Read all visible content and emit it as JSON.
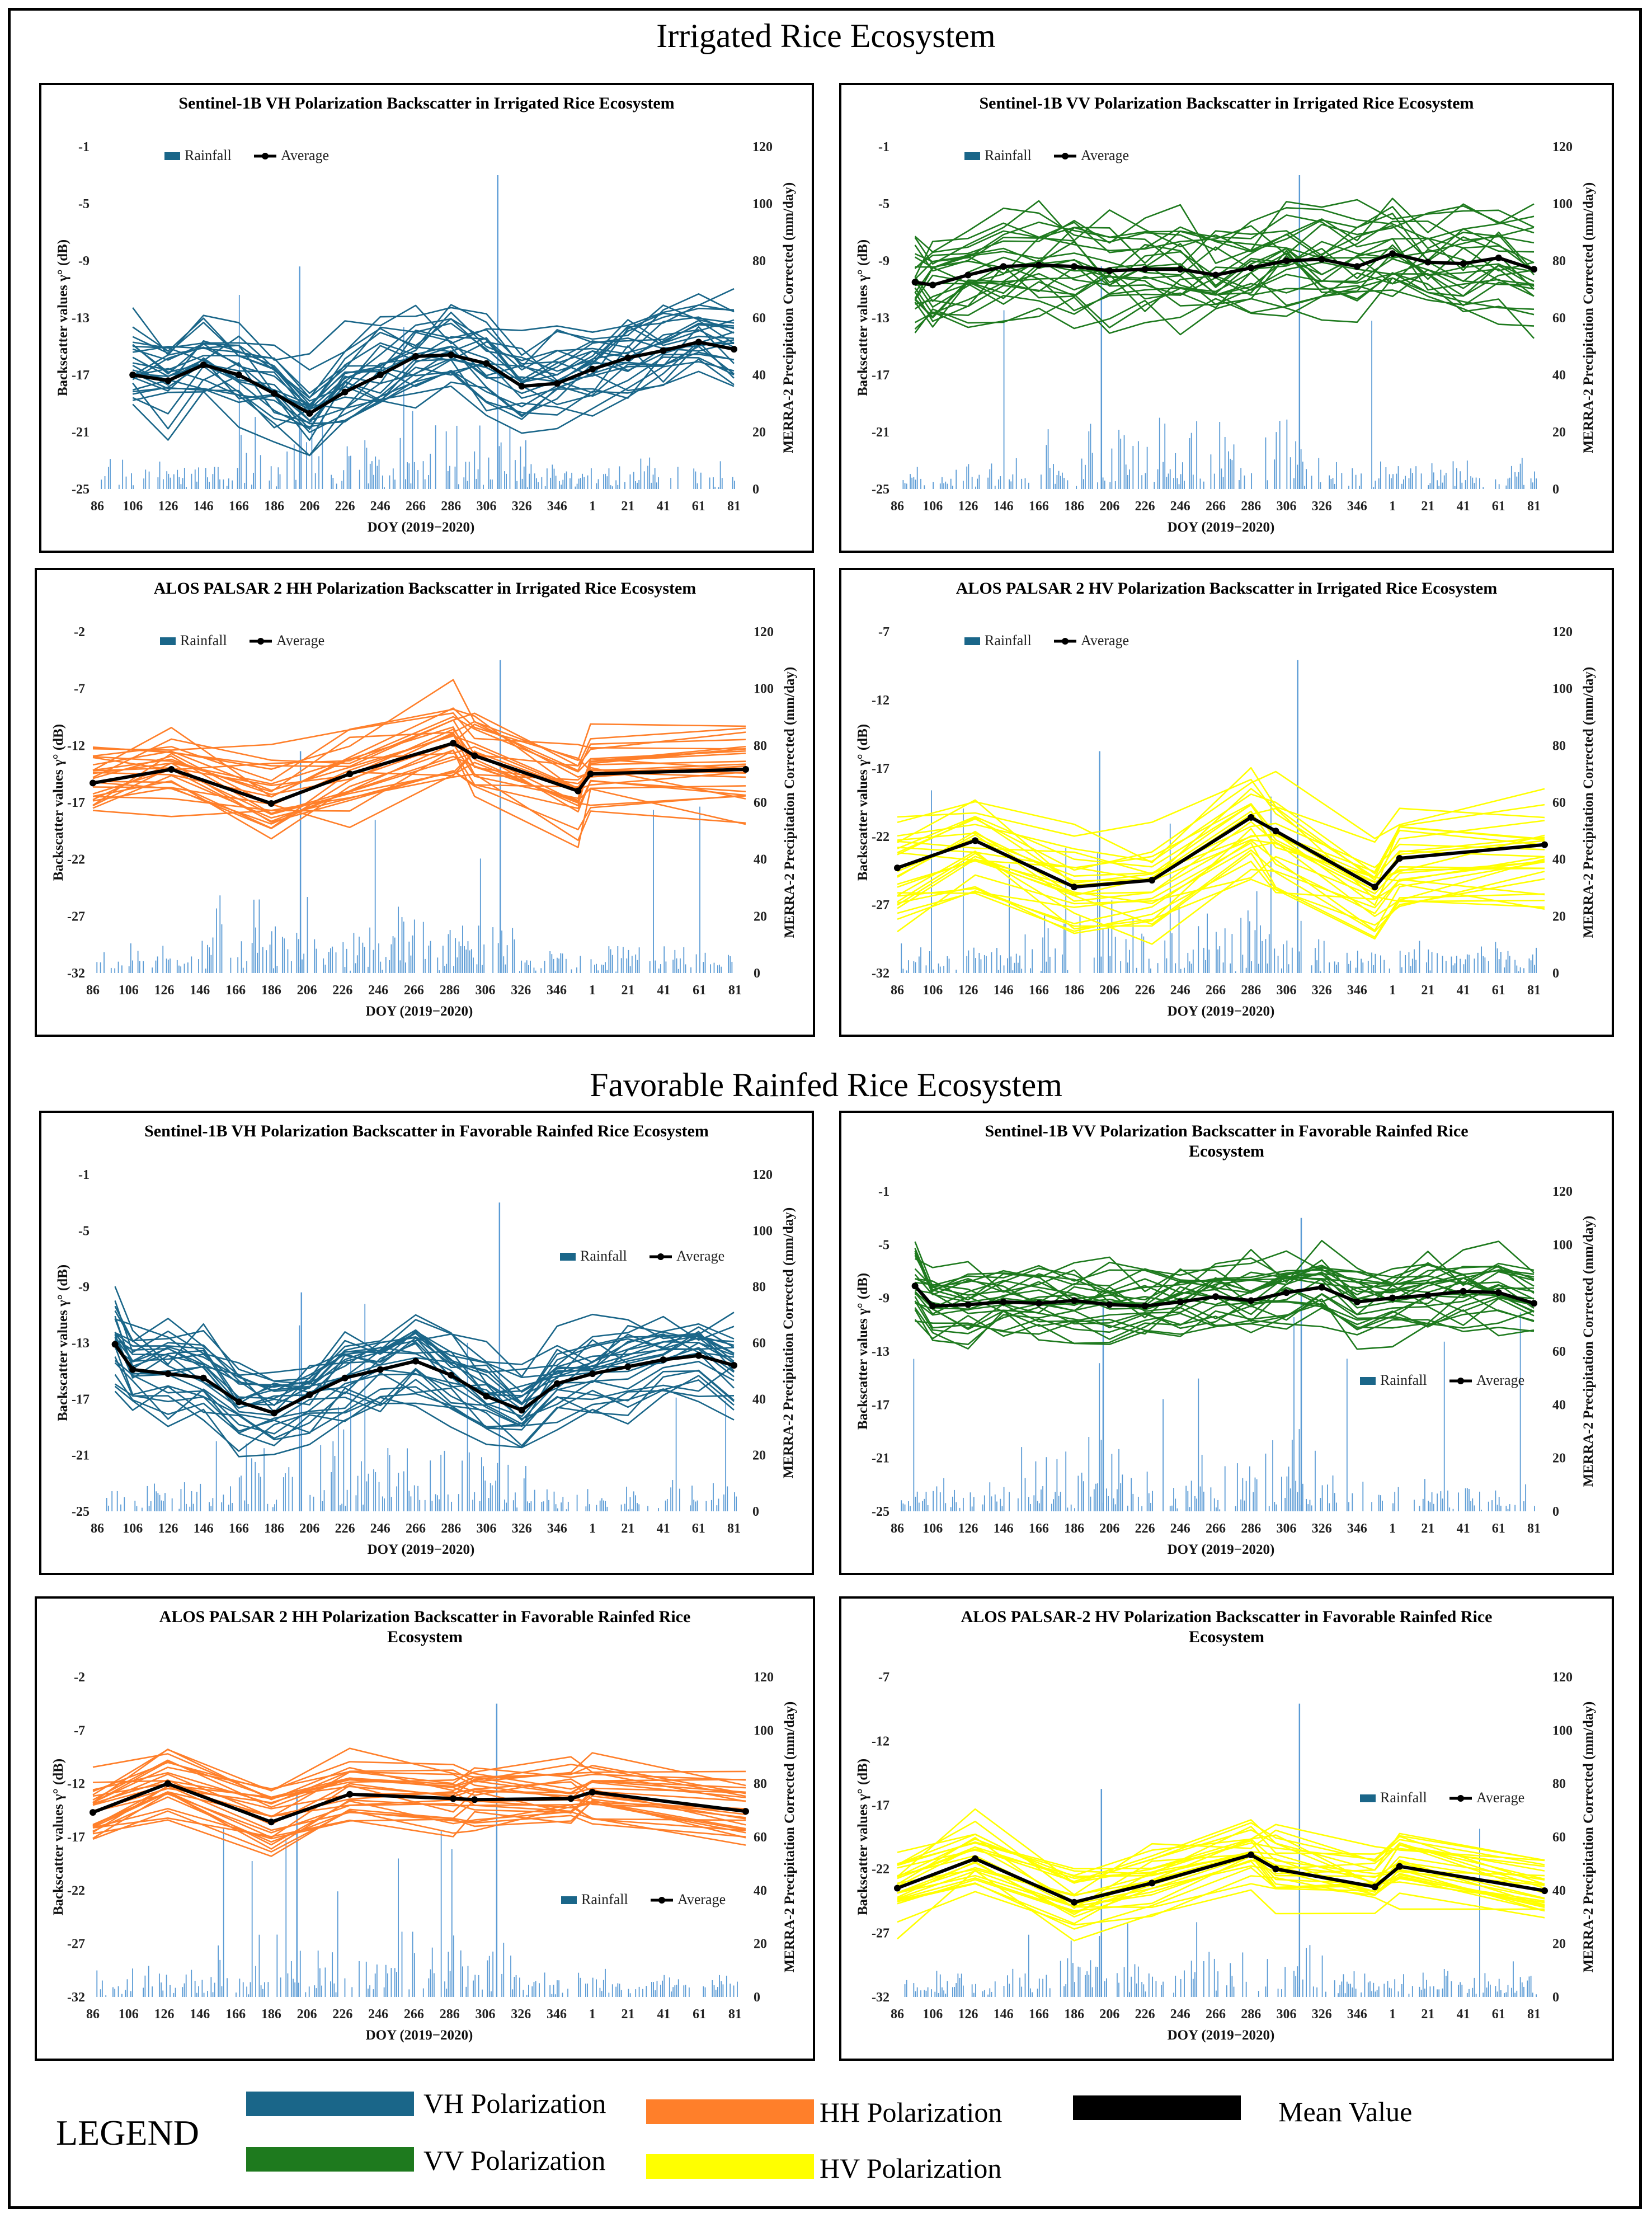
{
  "sections": {
    "irrigated": "Irrigated Rice Ecosystem",
    "rainfed": "Favorable Rainfed Rice Ecosystem"
  },
  "common": {
    "xlabel": "DOY (2019−2020)",
    "y2label": "MERRA-2 Precipitation Corrected (mm/day)",
    "ylabel": "Backscatter values γ° (dB)",
    "x_ticks": [
      "86",
      "106",
      "126",
      "146",
      "166",
      "186",
      "206",
      "226",
      "246",
      "266",
      "286",
      "306",
      "326",
      "346",
      "1",
      "21",
      "41",
      "61",
      "81"
    ],
    "y2_ticks": [
      "0",
      "20",
      "40",
      "60",
      "80",
      "100",
      "120"
    ],
    "legend_rainfall": "Rainfall",
    "legend_average": "Average",
    "rain_color": "#5b9bd5"
  },
  "chart_data": [
    {
      "id": "ir-s1-vh",
      "type": "line",
      "title": [
        "Sentinel-1B VH Polarization Backscatter in Irrigated Rice Ecosystem"
      ],
      "color": "#1a6689",
      "ylim": [
        -25,
        -1
      ],
      "y_ticks": [
        "-1",
        "-5",
        "-9",
        "-13",
        "-17",
        "-21",
        "-25"
      ],
      "average": {
        "x": [
          106,
          126,
          146,
          166,
          186,
          206,
          226,
          246,
          266,
          286,
          306,
          326,
          346,
          366,
          386,
          406,
          426,
          446
        ],
        "y": [
          -17,
          -17.4,
          -16.3,
          -17,
          -18.3,
          -19.7,
          -18.2,
          -17,
          -15.7,
          -15.6,
          -16.2,
          -17.8,
          -17.6,
          -16.6,
          -15.8,
          -15.3,
          -14.7,
          -15.2
        ]
      },
      "spread": 3.2,
      "legend_pos": "top-left"
    },
    {
      "id": "ir-s1-vv",
      "type": "line",
      "title": [
        "Sentinel-1B VV Polarization Backscatter in Irrigated Rice Ecosystem"
      ],
      "color": "#1e7a1e",
      "ylim": [
        -25,
        -1
      ],
      "y_ticks": [
        "-1",
        "-5",
        "-9",
        "-13",
        "-17",
        "-21",
        "-25"
      ],
      "average": {
        "x": [
          96,
          106,
          126,
          146,
          166,
          186,
          206,
          226,
          246,
          266,
          286,
          306,
          326,
          346,
          366,
          386,
          406,
          426,
          446
        ],
        "y": [
          -10.5,
          -10.7,
          -10,
          -9.4,
          -9.3,
          -9.4,
          -9.7,
          -9.6,
          -9.6,
          -10,
          -9.5,
          -9,
          -8.9,
          -9.4,
          -8.5,
          -9.1,
          -9.2,
          -8.8,
          -9.6
        ]
      },
      "spread": 3.4,
      "legend_pos": "top-left"
    },
    {
      "id": "ir-alos-hh",
      "type": "line",
      "title": [
        "ALOS PALSAR 2 HH Polarization Backscatter in Irrigated Rice Ecosystem"
      ],
      "color": "#ff7f2a",
      "ylim": [
        -32,
        -2
      ],
      "y_ticks": [
        "-2",
        "-7",
        "-12",
        "-17",
        "-22",
        "-27",
        "-32"
      ],
      "average": {
        "x": [
          86,
          130,
          186,
          230,
          288,
          300,
          358,
          365,
          452
        ],
        "y": [
          -15.3,
          -14.1,
          -17.1,
          -14.5,
          -11.8,
          -12.9,
          -16,
          -14.5,
          -14.1
        ]
      },
      "spread": 4,
      "legend_pos": "top-left"
    },
    {
      "id": "ir-alos-hv",
      "type": "line",
      "title": [
        "ALOS PALSAR 2 HV Polarization Backscatter in Irrigated Rice Ecosystem"
      ],
      "color": "#ffff00",
      "ylim": [
        -32,
        -7
      ],
      "y_ticks": [
        "-7",
        "-12",
        "-17",
        "-22",
        "-27",
        "-32"
      ],
      "average": {
        "x": [
          86,
          130,
          186,
          230,
          286,
          300,
          356,
          370,
          452
        ],
        "y": [
          -24.3,
          -22.3,
          -25.7,
          -25.2,
          -20.6,
          -21.6,
          -25.7,
          -23.6,
          -22.6
        ]
      },
      "spread": 3.5,
      "legend_pos": "top-left"
    },
    {
      "id": "rf-s1-vh",
      "type": "line",
      "title": [
        "Sentinel-1B VH Polarization Backscatter in Favorable Rainfed Rice Ecosystem"
      ],
      "color": "#1a6689",
      "ylim": [
        -25,
        -1
      ],
      "y_ticks": [
        "-1",
        "-5",
        "-9",
        "-13",
        "-17",
        "-21",
        "-25"
      ],
      "average": {
        "x": [
          96,
          106,
          126,
          146,
          166,
          186,
          206,
          226,
          246,
          266,
          286,
          306,
          326,
          346,
          366,
          386,
          406,
          426,
          446
        ],
        "y": [
          -13.1,
          -14.9,
          -15.2,
          -15.5,
          -17.2,
          -18,
          -16.7,
          -15.5,
          -14.9,
          -14.3,
          -15.3,
          -16.8,
          -17.8,
          -15.9,
          -15.2,
          -14.7,
          -14.2,
          -13.9,
          -14.6
        ]
      },
      "spread": 2.8,
      "legend_pos": "right"
    },
    {
      "id": "rf-s1-vv",
      "type": "line",
      "title": [
        "Sentinel-1B VV Polarization Backscatter in Favorable Rainfed Rice",
        "Ecosystem"
      ],
      "color": "#1e7a1e",
      "ylim": [
        -25,
        -1
      ],
      "y_ticks": [
        "-1",
        "-5",
        "-9",
        "-13",
        "-17",
        "-21",
        "-25"
      ],
      "average": {
        "x": [
          96,
          106,
          126,
          146,
          166,
          186,
          206,
          226,
          246,
          266,
          286,
          306,
          326,
          346,
          366,
          386,
          406,
          426,
          446
        ],
        "y": [
          -8.1,
          -9.6,
          -9.5,
          -9.3,
          -9.4,
          -9.2,
          -9.5,
          -9.6,
          -9.3,
          -8.9,
          -9.2,
          -8.6,
          -8.2,
          -9.3,
          -9,
          -8.8,
          -8.5,
          -8.6,
          -9.4
        ]
      },
      "spread": 2.6,
      "legend_pos": "bottom-right"
    },
    {
      "id": "rf-alos-hh",
      "type": "line",
      "title": [
        "ALOS PALSAR 2 HH Polarization Backscatter in Favorable Rainfed Rice",
        "Ecosystem"
      ],
      "color": "#ff7f2a",
      "ylim": [
        -32,
        -2
      ],
      "y_ticks": [
        "-2",
        "-7",
        "-12",
        "-17",
        "-22",
        "-27",
        "-32"
      ],
      "average": {
        "x": [
          86,
          128,
          186,
          230,
          288,
          300,
          354,
          366,
          452
        ],
        "y": [
          -14.7,
          -12,
          -15.6,
          -13,
          -13.4,
          -13.5,
          -13.4,
          -12.8,
          -14.6
        ]
      },
      "spread": 2.8,
      "legend_pos": "bottom-right"
    },
    {
      "id": "rf-alos-hv",
      "type": "line",
      "title": [
        "ALOS PALSAR-2 HV Polarization Backscatter in Favorable Rainfed Rice",
        "Ecosystem"
      ],
      "color": "#ffff00",
      "ylim": [
        -32,
        -7
      ],
      "y_ticks": [
        "-7",
        "-12",
        "-17",
        "-22",
        "-27",
        "-32"
      ],
      "average": {
        "x": [
          86,
          130,
          186,
          230,
          286,
          300,
          356,
          370,
          452
        ],
        "y": [
          -23.5,
          -21.2,
          -24.6,
          -23.1,
          -20.9,
          -22,
          -23.4,
          -21.8,
          -23.7
        ]
      },
      "spread": 2.6,
      "legend_pos": "right"
    }
  ],
  "legend": {
    "title": "LEGEND",
    "items": [
      {
        "label": "VH Polarization",
        "color": "#1a6689"
      },
      {
        "label": "HH Polarization",
        "color": "#ff7f2a"
      },
      {
        "label": "Mean Value",
        "color": "#000000"
      },
      {
        "label": "VV Polarization",
        "color": "#1e7a1e"
      },
      {
        "label": "HV Polarization",
        "color": "#ffff00"
      }
    ]
  }
}
